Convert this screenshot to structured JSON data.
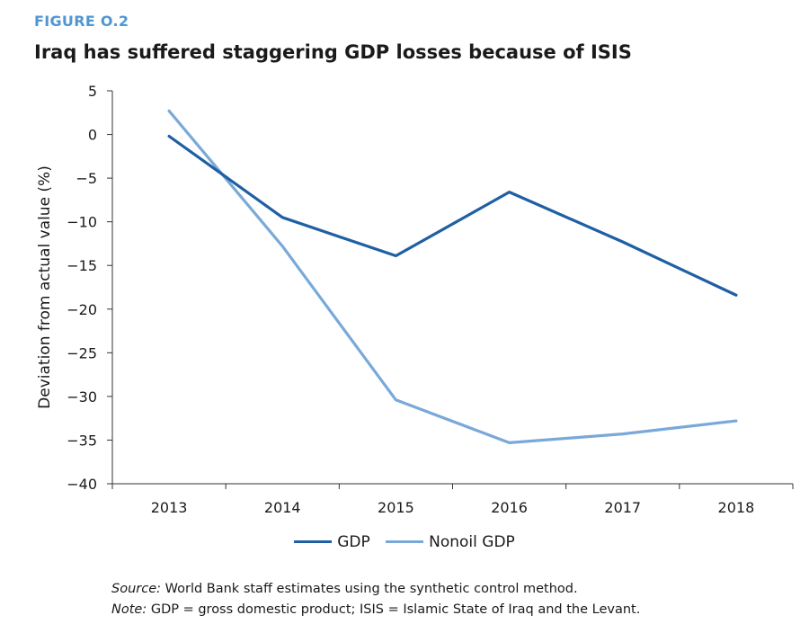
{
  "figure": {
    "label": "FIGURE O.2",
    "title": "Iraq has suffered staggering GDP losses because of ISIS"
  },
  "chart_data": {
    "type": "line",
    "x": [
      "2013",
      "2014",
      "2015",
      "2016",
      "2017",
      "2018"
    ],
    "series": [
      {
        "name": "GDP",
        "color": "#1f5fa3",
        "values": [
          -0.2,
          -9.5,
          -13.9,
          -6.6,
          -12.3,
          -18.4
        ]
      },
      {
        "name": "Nonoil GDP",
        "color": "#79a9d9",
        "values": [
          2.7,
          -12.8,
          -30.4,
          -35.3,
          -34.3,
          -32.8
        ]
      }
    ],
    "ylabel": "Deviation from actual value (%)",
    "xlabel": "",
    "ylim": [
      -40,
      5
    ],
    "yticks": [
      5,
      0,
      -5,
      -10,
      -15,
      -20,
      -25,
      -30,
      -35,
      -40
    ],
    "ytick_labels": [
      "5",
      "0",
      "−5",
      "−10",
      "−15",
      "−20",
      "−25",
      "−30",
      "−35",
      "−40"
    ],
    "grid": false,
    "legend_position": "bottom-center"
  },
  "notes": {
    "source_label": "Source:",
    "source_text": " World Bank staff estimates using the synthetic control method.",
    "note_label": "Note:",
    "note_text": " GDP = gross domestic product; ISIS = Islamic State of Iraq and the Levant."
  }
}
